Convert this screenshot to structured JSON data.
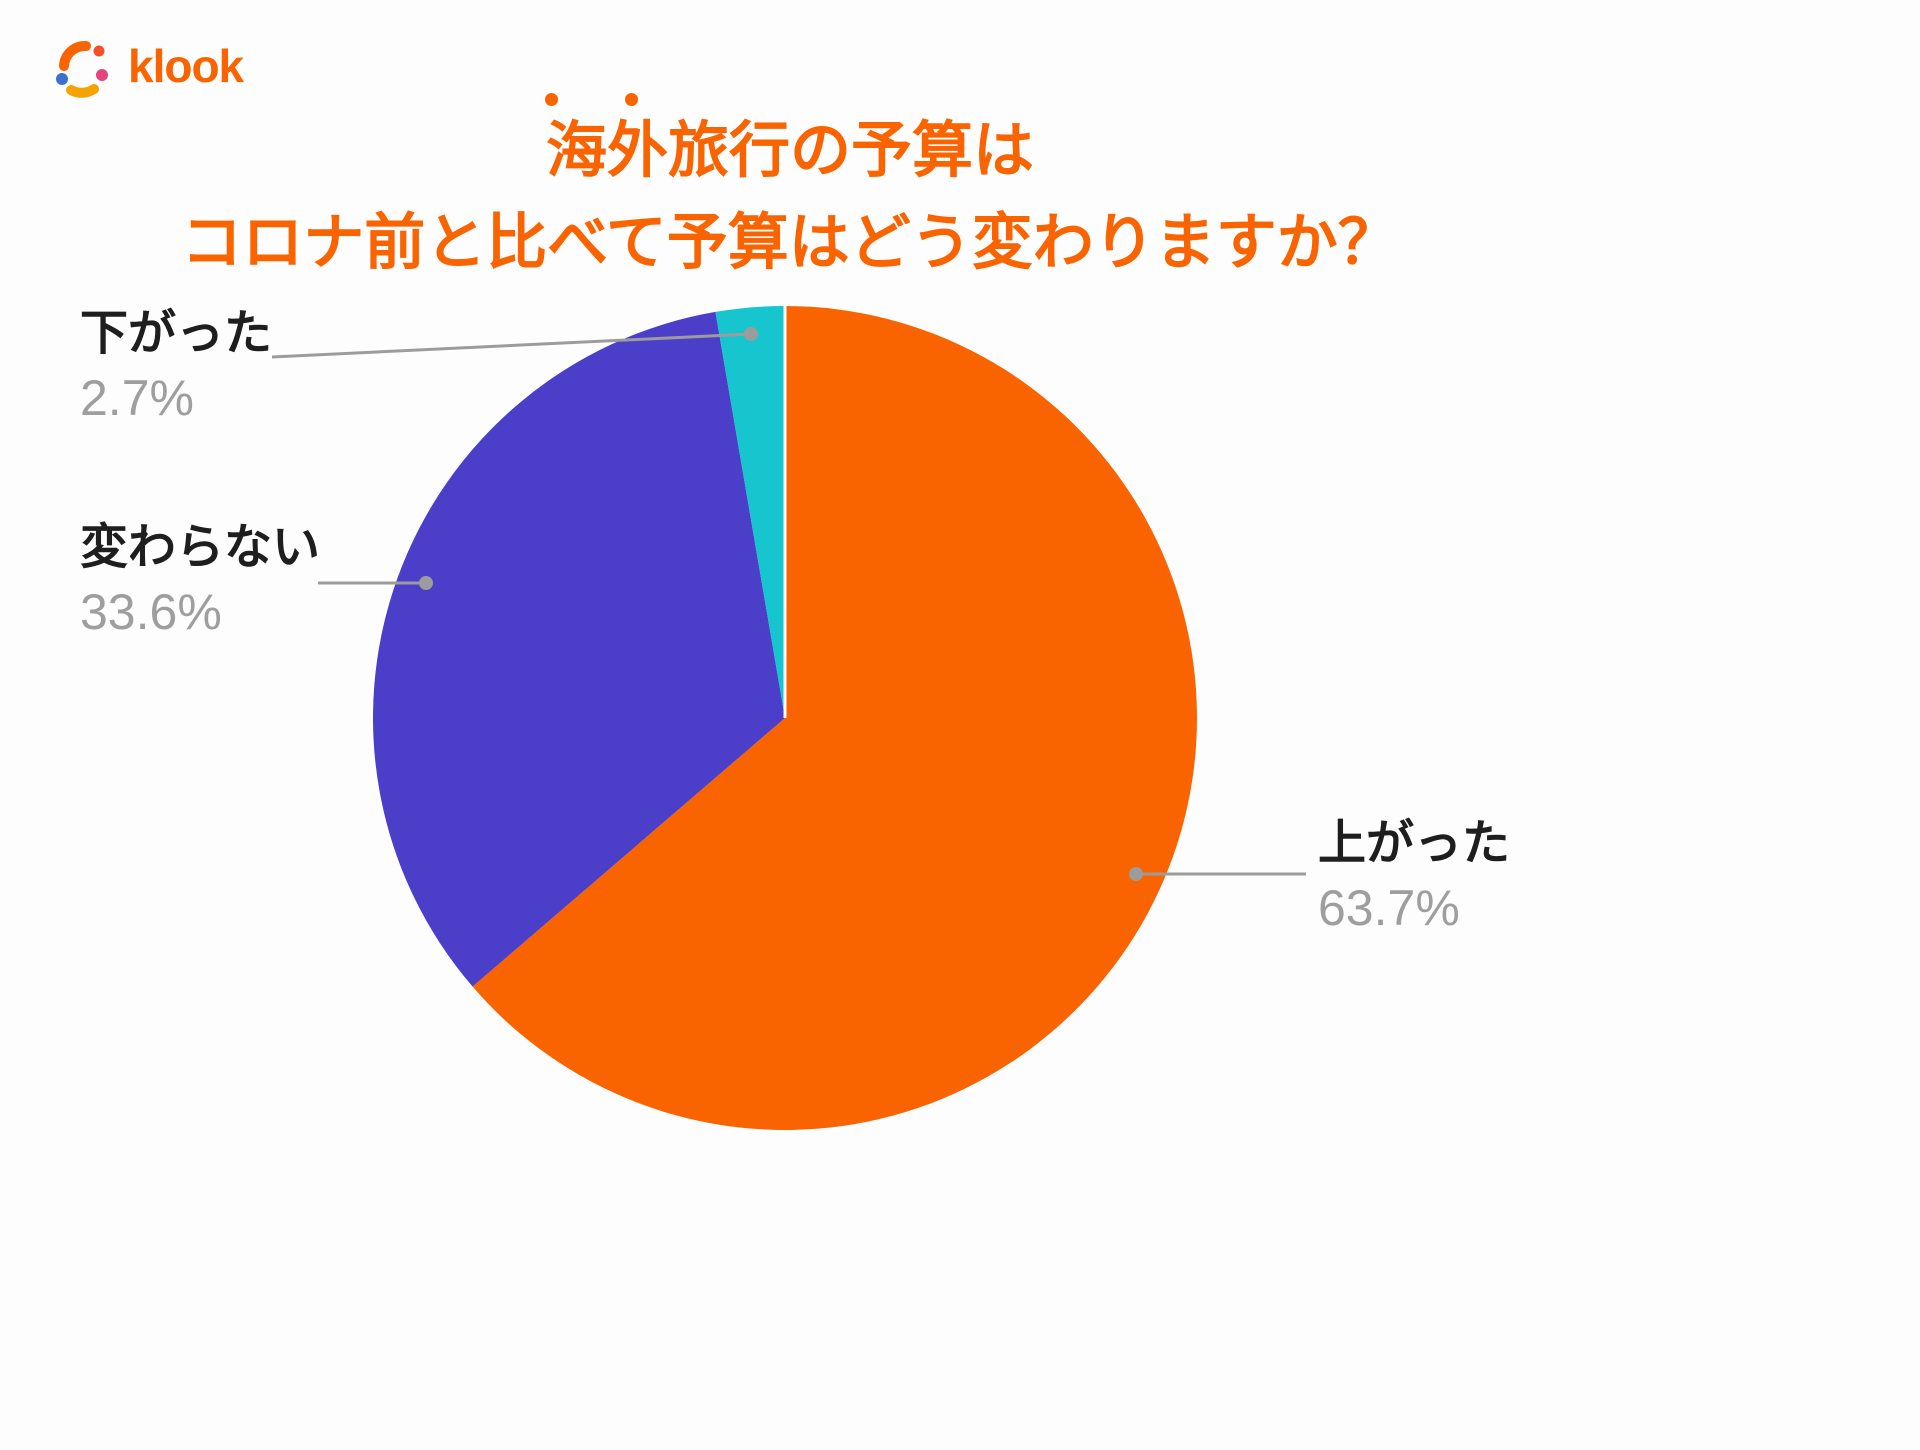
{
  "brand": {
    "wordmark": "klook"
  },
  "header": {
    "title_line1": "海外旅行の予算は",
    "title_line2": "コロナ前と比べて予算はどう変わりますか？",
    "title_color": "#FA6400"
  },
  "chart_data": {
    "type": "pie",
    "title": "海外旅行の予算はコロナ前と比べて予算はどう変わりますか？",
    "direction": "clockwise",
    "start_angle": "top",
    "slices": [
      {
        "id": "increased",
        "label": "上がった",
        "value": 63.7,
        "display": "63.7%",
        "color": "#FA6400"
      },
      {
        "id": "unchanged",
        "label": "変わらない",
        "value": 33.6,
        "display": "33.6%",
        "color": "#4B3EC8"
      },
      {
        "id": "decreased",
        "label": "下がった",
        "value": 2.7,
        "display": "2.7%",
        "color": "#17C5CE"
      }
    ],
    "legend_position": "outside-labels-with-leader-lines",
    "label_text_color": "#1E1E1E",
    "percent_text_color": "#9E9E9E",
    "leader_line_color": "#9C9C9C"
  }
}
